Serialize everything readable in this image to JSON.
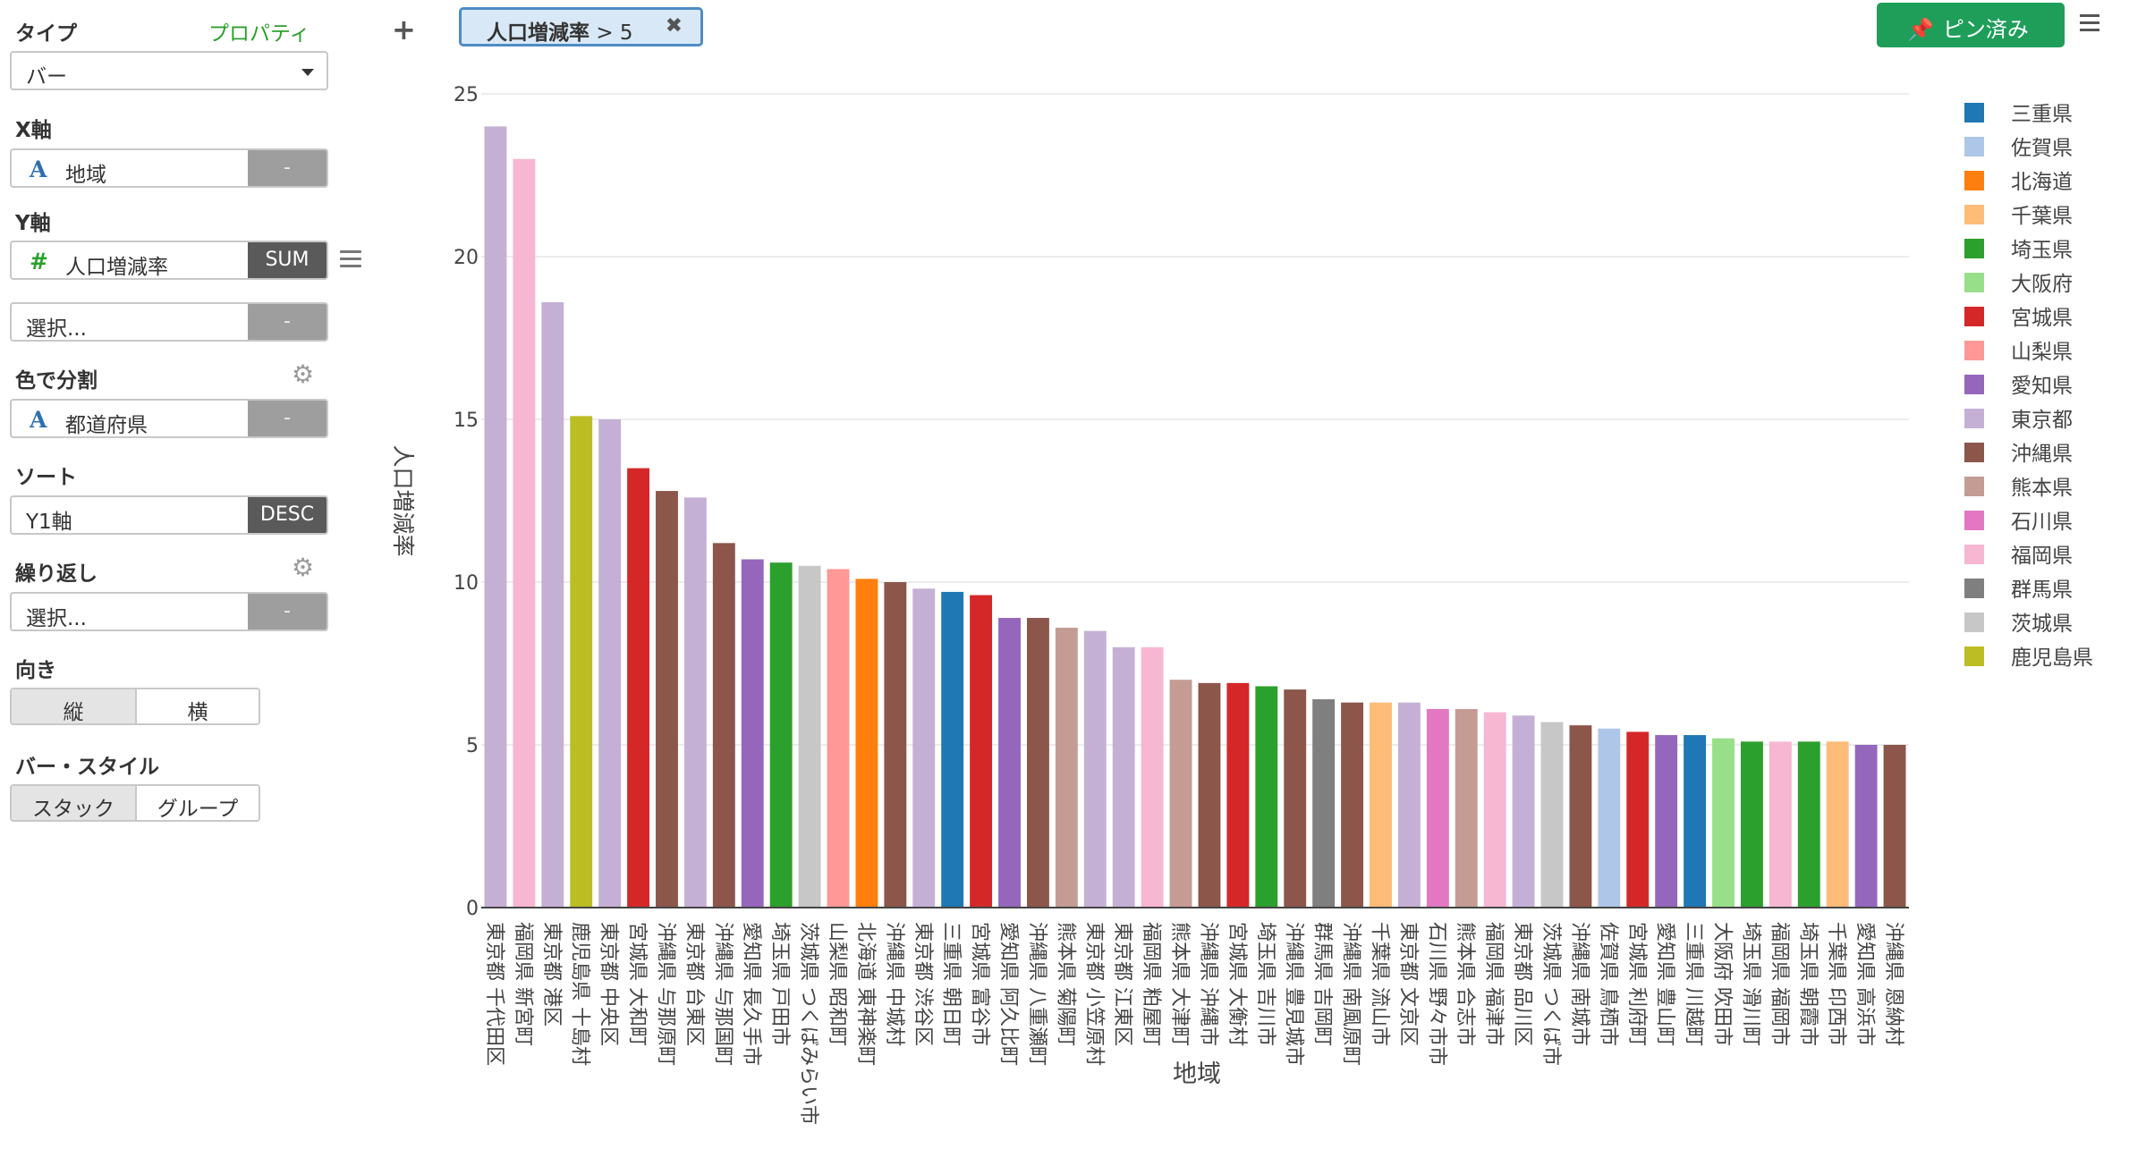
{
  "panel": {
    "type_label": "タイプ",
    "property_link": "プロパティ",
    "chart_type_value": "バー",
    "x_axis_label": "X軸",
    "x_axis_field": "地域",
    "x_axis_btn": "-",
    "y_axis_label": "Y軸",
    "y_axis_field": "人口増減率",
    "y_axis_agg": "SUM",
    "y_axis2_placeholder": "選択...",
    "y_axis2_btn": "-",
    "color_label": "色で分割",
    "color_field": "都道府県",
    "color_btn": "-",
    "sort_label": "ソート",
    "sort_field": "Y1軸",
    "sort_dir": "DESC",
    "repeat_label": "繰り返し",
    "repeat_placeholder": "選択...",
    "repeat_btn": "-",
    "orientation_label": "向き",
    "orientation_options": [
      "縦",
      "横"
    ],
    "bar_style_label": "バー・スタイル",
    "bar_style_options": [
      "スタック",
      "グループ"
    ]
  },
  "filter": {
    "field": "人口増減率",
    "condition": "> 5"
  },
  "pin_button": "ピン済み",
  "icons": {
    "add": "plus-icon",
    "filter_remove": "close-icon",
    "pin": "pin-icon",
    "menu": "hamburger-icon",
    "settings": "gear-icon",
    "text_field": "text-type-icon",
    "number_field": "number-type-icon"
  },
  "chart_data": {
    "type": "bar",
    "xlabel": "地域",
    "ylabel": "人口増減率",
    "ylim": [
      0,
      25
    ],
    "yticks": [
      0,
      5,
      10,
      15,
      20,
      25
    ],
    "grid": true,
    "legend_position": "right",
    "palette": {
      "三重県": "#1f77b4",
      "佐賀県": "#aec7e8",
      "北海道": "#ff7f0e",
      "千葉県": "#ffbb78",
      "埼玉県": "#2ca02c",
      "大阪府": "#98df8a",
      "宮城県": "#d62728",
      "山梨県": "#ff9896",
      "愛知県": "#9467bd",
      "東京都": "#c5b0d5",
      "沖縄県": "#8c564b",
      "熊本県": "#c49c94",
      "石川県": "#e377c2",
      "福岡県": "#f7b6d2",
      "群馬県": "#7f7f7f",
      "茨城県": "#c7c7c7",
      "鹿児島県": "#bcbd22"
    },
    "legend": [
      "三重県",
      "佐賀県",
      "北海道",
      "千葉県",
      "埼玉県",
      "大阪府",
      "宮城県",
      "山梨県",
      "愛知県",
      "東京都",
      "沖縄県",
      "熊本県",
      "石川県",
      "福岡県",
      "群馬県",
      "茨城県",
      "鹿児島県"
    ],
    "categories": [
      "東京都 千代田区",
      "福岡県 新宮町",
      "東京都 港区",
      "鹿児島県 十島村",
      "東京都 中央区",
      "宮城県 大和町",
      "沖縄県 与那原町",
      "東京都 台東区",
      "沖縄県 与那国町",
      "愛知県 長久手市",
      "埼玉県 戸田市",
      "茨城県 つくばみらい市",
      "山梨県 昭和町",
      "北海道 東神楽町",
      "沖縄県 中城村",
      "東京都 渋谷区",
      "三重県 朝日町",
      "宮城県 富谷市",
      "愛知県 阿久比町",
      "沖縄県 八重瀬町",
      "熊本県 菊陽町",
      "東京都 小笠原村",
      "東京都 江東区",
      "福岡県 粕屋町",
      "熊本県 大津町",
      "沖縄県 沖縄市",
      "宮城県 大衡村",
      "埼玉県 吉川市",
      "沖縄県 豊見城市",
      "群馬県 吉岡町",
      "沖縄県 南風原町",
      "千葉県 流山市",
      "東京都 文京区",
      "石川県 野々市市",
      "熊本県 合志市",
      "福岡県 福津市",
      "東京都 品川区",
      "茨城県 つくば市",
      "沖縄県 南城市",
      "佐賀県 鳥栖市",
      "宮城県 利府町",
      "愛知県 豊山町",
      "三重県 川越町",
      "大阪府 吹田市",
      "埼玉県 滑川町",
      "福岡県 福岡市",
      "埼玉県 朝霞市",
      "千葉県 印西市",
      "愛知県 高浜市",
      "沖縄県 恩納村"
    ],
    "prefectures": [
      "東京都",
      "福岡県",
      "東京都",
      "鹿児島県",
      "東京都",
      "宮城県",
      "沖縄県",
      "東京都",
      "沖縄県",
      "愛知県",
      "埼玉県",
      "茨城県",
      "山梨県",
      "北海道",
      "沖縄県",
      "東京都",
      "三重県",
      "宮城県",
      "愛知県",
      "沖縄県",
      "熊本県",
      "東京都",
      "東京都",
      "福岡県",
      "熊本県",
      "沖縄県",
      "宮城県",
      "埼玉県",
      "沖縄県",
      "群馬県",
      "沖縄県",
      "千葉県",
      "東京都",
      "石川県",
      "熊本県",
      "福岡県",
      "東京都",
      "茨城県",
      "沖縄県",
      "佐賀県",
      "宮城県",
      "愛知県",
      "三重県",
      "大阪府",
      "埼玉県",
      "福岡県",
      "埼玉県",
      "千葉県",
      "愛知県",
      "沖縄県"
    ],
    "values": [
      24.0,
      23.0,
      18.6,
      15.1,
      15.0,
      13.5,
      12.8,
      12.6,
      11.2,
      10.7,
      10.6,
      10.5,
      10.4,
      10.1,
      10.0,
      9.8,
      9.7,
      9.6,
      8.9,
      8.9,
      8.6,
      8.5,
      8.0,
      8.0,
      7.0,
      6.9,
      6.9,
      6.8,
      6.7,
      6.4,
      6.3,
      6.3,
      6.3,
      6.1,
      6.1,
      6.0,
      5.9,
      5.7,
      5.6,
      5.5,
      5.4,
      5.3,
      5.3,
      5.2,
      5.1,
      5.1,
      5.1,
      5.1,
      5.0,
      5.0
    ]
  }
}
